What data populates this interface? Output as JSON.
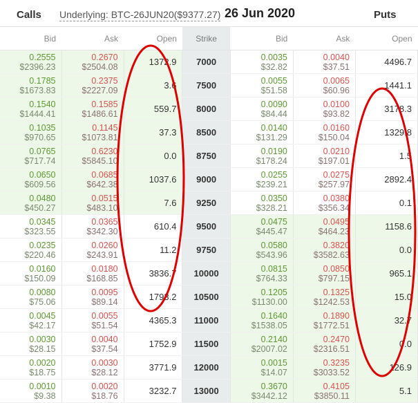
{
  "header": {
    "calls_label": "Calls",
    "underlying_label": "Underlying: BTC-26JUN20($9377.27)",
    "expiry_label": "26 Jun 2020",
    "puts_label": "Puts"
  },
  "columns": {
    "call_bid": "Bid",
    "call_ask": "Ask",
    "call_open": "Open",
    "strike": "Strike",
    "put_bid": "Bid",
    "put_ask": "Ask",
    "put_open": "Open"
  },
  "rows": [
    {
      "strike": "7000",
      "call_bid": "0.2555",
      "call_bid_usd": "$2396.23",
      "call_ask": "0.2670",
      "call_ask_usd": "$2504.08",
      "call_open": "1372.9",
      "put_bid": "0.0035",
      "put_bid_usd": "$32.82",
      "put_ask": "0.0040",
      "put_ask_usd": "$37.51",
      "put_open": "4496.7"
    },
    {
      "strike": "7500",
      "call_bid": "0.1785",
      "call_bid_usd": "$1673.83",
      "call_ask": "0.2375",
      "call_ask_usd": "$2227.09",
      "call_open": "3.6",
      "put_bid": "0.0055",
      "put_bid_usd": "$51.58",
      "put_ask": "0.0065",
      "put_ask_usd": "$60.96",
      "put_open": "1441.1"
    },
    {
      "strike": "8000",
      "call_bid": "0.1540",
      "call_bid_usd": "$1444.41",
      "call_ask": "0.1585",
      "call_ask_usd": "$1486.61",
      "call_open": "559.7",
      "put_bid": "0.0090",
      "put_bid_usd": "$84.44",
      "put_ask": "0.0100",
      "put_ask_usd": "$93.82",
      "put_open": "3178.3"
    },
    {
      "strike": "8500",
      "call_bid": "0.1035",
      "call_bid_usd": "$970.65",
      "call_ask": "0.1145",
      "call_ask_usd": "$1073.81",
      "call_open": "37.3",
      "put_bid": "0.0140",
      "put_bid_usd": "$131.29",
      "put_ask": "0.0160",
      "put_ask_usd": "$150.04",
      "put_open": "1329.8"
    },
    {
      "strike": "8750",
      "call_bid": "0.0765",
      "call_bid_usd": "$717.74",
      "call_ask": "0.6230",
      "call_ask_usd": "$5845.10",
      "call_open": "0.0",
      "put_bid": "0.0190",
      "put_bid_usd": "$178.24",
      "put_ask": "0.0210",
      "put_ask_usd": "$197.01",
      "put_open": "1.5"
    },
    {
      "strike": "9000",
      "call_bid": "0.0650",
      "call_bid_usd": "$609.56",
      "call_ask": "0.0685",
      "call_ask_usd": "$642.38",
      "call_open": "1037.6",
      "put_bid": "0.0255",
      "put_bid_usd": "$239.21",
      "put_ask": "0.0275",
      "put_ask_usd": "$257.97",
      "put_open": "2892.4"
    },
    {
      "strike": "9250",
      "call_bid": "0.0480",
      "call_bid_usd": "$450.27",
      "call_ask": "0.0515",
      "call_ask_usd": "$483.10",
      "call_open": "7.6",
      "put_bid": "0.0350",
      "put_bid_usd": "$328.21",
      "put_ask": "0.0380",
      "put_ask_usd": "$356.34",
      "put_open": "0.1"
    },
    {
      "strike": "9500",
      "call_bid": "0.0345",
      "call_bid_usd": "$323.55",
      "call_ask": "0.0365",
      "call_ask_usd": "$342.30",
      "call_open": "610.4",
      "put_bid": "0.0475",
      "put_bid_usd": "$445.47",
      "put_ask": "0.0495",
      "put_ask_usd": "$464.23",
      "put_open": "1158.6"
    },
    {
      "strike": "9750",
      "call_bid": "0.0235",
      "call_bid_usd": "$220.46",
      "call_ask": "0.0260",
      "call_ask_usd": "$243.91",
      "call_open": "11.2",
      "put_bid": "0.0580",
      "put_bid_usd": "$543.96",
      "put_ask": "0.3820",
      "put_ask_usd": "$3582.63",
      "put_open": "0.0"
    },
    {
      "strike": "10000",
      "call_bid": "0.0160",
      "call_bid_usd": "$150.09",
      "call_ask": "0.0180",
      "call_ask_usd": "$168.85",
      "call_open": "3836.7",
      "put_bid": "0.0815",
      "put_bid_usd": "$764.33",
      "put_ask": "0.0850",
      "put_ask_usd": "$797.15",
      "put_open": "965.1"
    },
    {
      "strike": "10500",
      "call_bid": "0.0080",
      "call_bid_usd": "$75.06",
      "call_ask": "0.0095",
      "call_ask_usd": "$89.14",
      "call_open": "1793.2",
      "put_bid": "0.1205",
      "put_bid_usd": "$1130.00",
      "put_ask": "0.1325",
      "put_ask_usd": "$1242.53",
      "put_open": "15.0"
    },
    {
      "strike": "11000",
      "call_bid": "0.0045",
      "call_bid_usd": "$42.17",
      "call_ask": "0.0055",
      "call_ask_usd": "$51.54",
      "call_open": "4365.3",
      "put_bid": "0.1640",
      "put_bid_usd": "$1538.05",
      "put_ask": "0.1890",
      "put_ask_usd": "$1772.51",
      "put_open": "32.7"
    },
    {
      "strike": "11500",
      "call_bid": "0.0030",
      "call_bid_usd": "$28.15",
      "call_ask": "0.0040",
      "call_ask_usd": "$37.54",
      "call_open": "1752.9",
      "put_bid": "0.2140",
      "put_bid_usd": "$2007.02",
      "put_ask": "0.2470",
      "put_ask_usd": "$2316.51",
      "put_open": "0.0"
    },
    {
      "strike": "12000",
      "call_bid": "0.0020",
      "call_bid_usd": "$18.75",
      "call_ask": "0.0030",
      "call_ask_usd": "$28.12",
      "call_open": "3771.9",
      "put_bid": "0.0015",
      "put_bid_usd": "$14.07",
      "put_ask": "0.3235",
      "put_ask_usd": "$3033.52",
      "put_open": "126.9"
    },
    {
      "strike": "13000",
      "call_bid": "0.0010",
      "call_bid_usd": "$9.38",
      "call_ask": "0.0020",
      "call_ask_usd": "$18.76",
      "call_open": "3232.7",
      "put_bid": "0.3670",
      "put_bid_usd": "$3442.12",
      "put_ask": "0.4105",
      "put_ask_usd": "$3850.11",
      "put_open": "5.1"
    }
  ],
  "colors": {
    "bid": "#5d9a32",
    "ask": "#d9534f",
    "itm_bg": "#eef8e8",
    "strike_bg": "#e9ecec",
    "annotation": "#dd0000"
  }
}
